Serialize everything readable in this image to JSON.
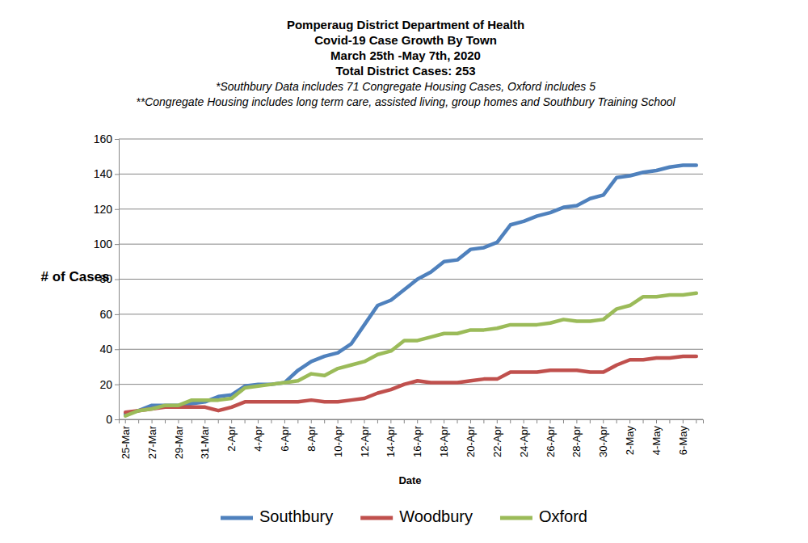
{
  "chart_data": {
    "type": "line",
    "title": "Pomperaug District Department of Health",
    "subtitle": [
      "Covid-19 Case Growth By Town",
      "March 25th -May 7th, 2020",
      "Total District Cases: 253"
    ],
    "annotations": [
      "*Southbury Data includes 71 Congregate Housing Cases, Oxford includes 5",
      "**Congregate Housing includes long term care, assisted living, group homes and Southbury Training School"
    ],
    "x_label": "Date",
    "y_label": "# of Cases",
    "categories": [
      "25-Mar",
      null,
      "27-Mar",
      null,
      "29-Mar",
      null,
      "31-Mar",
      null,
      "2-Apr",
      null,
      "4-Apr",
      null,
      "6-Apr",
      null,
      "8-Apr",
      null,
      "10-Apr",
      null,
      "12-Apr",
      null,
      "14-Apr",
      null,
      "16-Apr",
      null,
      "18-Apr",
      null,
      "20-Apr",
      null,
      "22-Apr",
      null,
      "24-Apr",
      null,
      "26-Apr",
      null,
      "28-Apr",
      null,
      "30-Apr",
      null,
      "2-May",
      null,
      "4-May",
      null,
      "6-May",
      null
    ],
    "series": [
      {
        "name": "Southbury",
        "color": "#4f81bd",
        "values": [
          3,
          5,
          8,
          8,
          8,
          9,
          10,
          13,
          14,
          19,
          20,
          20,
          21,
          28,
          33,
          36,
          38,
          43,
          54,
          65,
          68,
          74,
          80,
          84,
          90,
          91,
          97,
          98,
          101,
          111,
          113,
          116,
          118,
          121,
          122,
          126,
          128,
          138,
          139,
          141,
          142,
          144,
          145,
          145
        ]
      },
      {
        "name": "Woodbury",
        "color": "#c0504d",
        "values": [
          4,
          5,
          6,
          7,
          7,
          7,
          7,
          5,
          7,
          10,
          10,
          10,
          10,
          10,
          11,
          10,
          10,
          11,
          12,
          15,
          17,
          20,
          22,
          21,
          21,
          21,
          22,
          23,
          23,
          27,
          27,
          27,
          28,
          28,
          28,
          27,
          27,
          31,
          34,
          34,
          35,
          35,
          36,
          36
        ]
      },
      {
        "name": "Oxford",
        "color": "#9bbb59",
        "values": [
          2,
          5,
          6,
          8,
          8,
          11,
          11,
          11,
          12,
          18,
          19,
          20,
          21,
          22,
          26,
          25,
          29,
          31,
          33,
          37,
          39,
          45,
          45,
          47,
          49,
          49,
          51,
          51,
          52,
          54,
          54,
          54,
          55,
          57,
          56,
          56,
          57,
          63,
          65,
          70,
          70,
          71,
          71,
          72
        ]
      }
    ],
    "ylim": [
      0,
      160
    ],
    "yticks": [
      0,
      20,
      40,
      60,
      80,
      100,
      120,
      140,
      160
    ],
    "grid": true,
    "legend": "bottom"
  }
}
